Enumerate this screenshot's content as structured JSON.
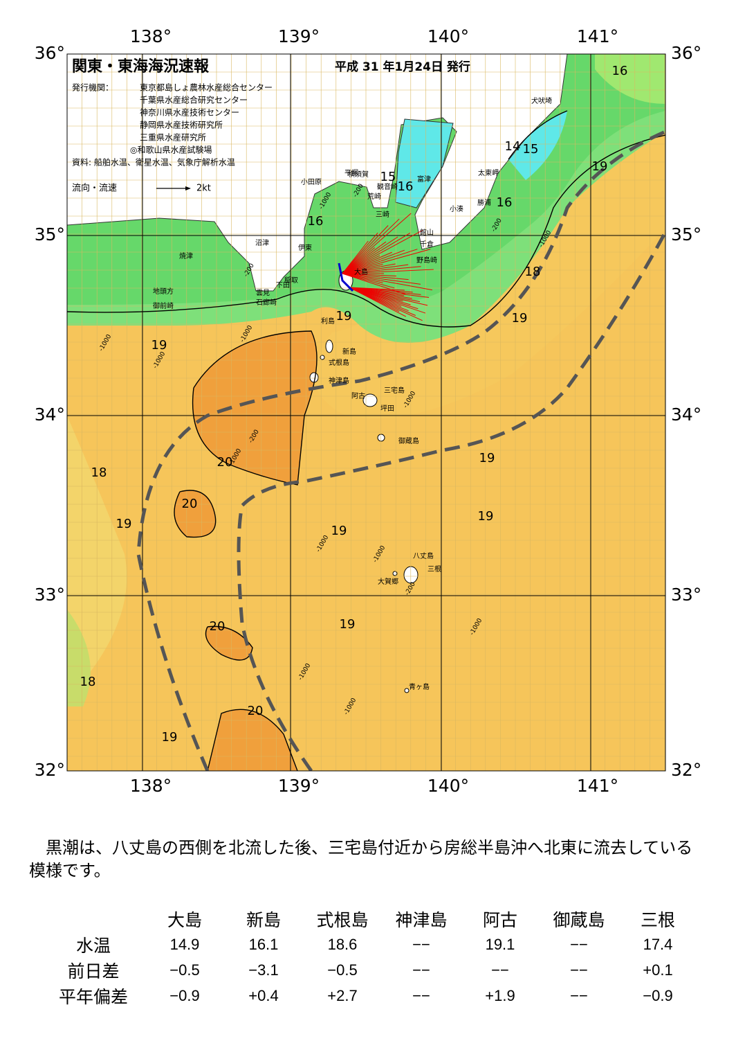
{
  "header": {
    "title": "関東・東海海況速報",
    "date": "平成 31 年1月24日 発行",
    "publisher_label": "発行機関：",
    "publishers": [
      "東京都島しょ農林水産総合センター",
      "千葉県水産総合研究センター",
      "神奈川県水産技術センター",
      "静岡県水産技術研究所",
      "三重県水産研究所",
      "◎和歌山県水産試験場"
    ],
    "source": "資料: 船舶水温、衛星水温、気象庁解析水温",
    "legend_label": "流向・流速",
    "legend_scale": "2kt"
  },
  "map": {
    "longitudes": [
      "138°",
      "139°",
      "140°",
      "141°"
    ],
    "latitudes": [
      "36°",
      "35°",
      "34°",
      "33°",
      "32°"
    ],
    "places": [
      "犬吠埼",
      "太東岬",
      "勝浦",
      "小湊",
      "富津",
      "館山",
      "千倉",
      "野島崎",
      "横須賀",
      "観音崎",
      "荒崎",
      "三崎",
      "平塚",
      "小田原",
      "大島",
      "沼津",
      "伊東",
      "焼津",
      "稲取",
      "下田",
      "雲見",
      "石廊崎",
      "地頭方",
      "御前崎",
      "利島",
      "新島",
      "式根島",
      "神津島",
      "三宅島",
      "阿古",
      "坪田",
      "御蔵島",
      "八丈島",
      "三根",
      "大賀郷",
      "青ヶ島"
    ],
    "isotherms": [
      16,
      16,
      16,
      16,
      15,
      14,
      15,
      19,
      18,
      19,
      19,
      19,
      20,
      18,
      19,
      19,
      20,
      19,
      19,
      19,
      20,
      18,
      20,
      19
    ],
    "depths": [
      "-1000",
      "-200",
      "-200",
      "-1000",
      "-1000",
      "-1000",
      "-200",
      "-1000",
      "-1000",
      "-1000",
      "-1000",
      "-200",
      "-1000",
      "-1000",
      "-1000",
      "-1000",
      "-200"
    ]
  },
  "summary": "黒潮は、八丈島の西側を北流した後、三宅島付近から房総半島沖へ北東に流去している模様です。",
  "table": {
    "columns": [
      "大島",
      "新島",
      "式根島",
      "神津島",
      "阿古",
      "御蔵島",
      "三根"
    ],
    "rows": [
      {
        "label": "水温",
        "cells": [
          "14.9",
          "16.1",
          "18.6",
          "−−",
          "19.1",
          "−−",
          "17.4"
        ]
      },
      {
        "label": "前日差",
        "cells": [
          "−0.5",
          "−3.1",
          "−0.5",
          "−−",
          "−−",
          "−−",
          "+0.1"
        ]
      },
      {
        "label": "平年偏差",
        "cells": [
          "−0.9",
          "+0.4",
          "+2.7",
          "−−",
          "+1.9",
          "−−",
          "−0.9"
        ]
      }
    ]
  }
}
